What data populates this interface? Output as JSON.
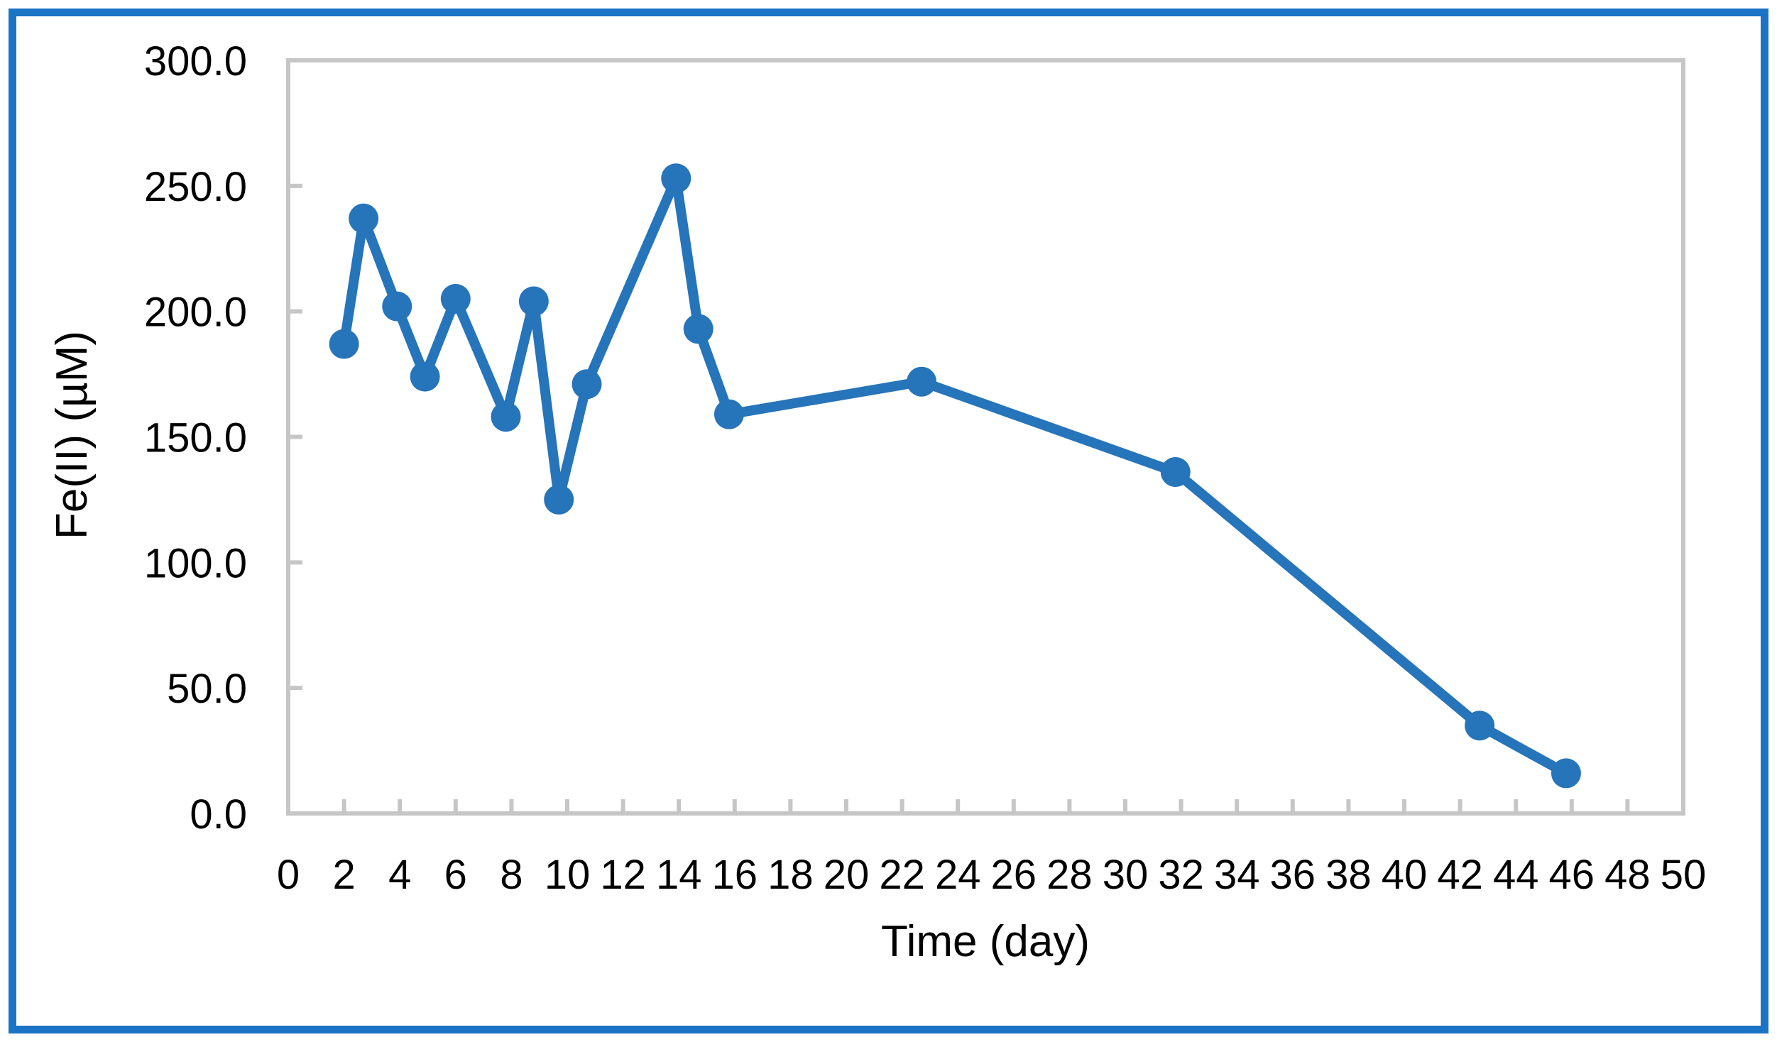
{
  "figure": {
    "background": "#FFFFFF",
    "border_color": "#1B73C6"
  },
  "chart_data": {
    "type": "line",
    "xlabel": "Time (day)",
    "ylabel": "Fe(II) (µM)",
    "xlim": [
      0,
      50
    ],
    "ylim": [
      0,
      300
    ],
    "x_ticks": [
      0,
      2,
      4,
      6,
      8,
      10,
      12,
      14,
      16,
      18,
      20,
      22,
      24,
      26,
      28,
      30,
      32,
      34,
      36,
      38,
      40,
      42,
      44,
      46,
      48,
      50
    ],
    "y_ticks": [
      0,
      50,
      100,
      150,
      200,
      250,
      300
    ],
    "y_tick_labels": [
      "0.0",
      "50.0",
      "100.0",
      "150.0",
      "200.0",
      "250.0",
      "300.0"
    ],
    "grid": false,
    "legend": false,
    "marker": "circle",
    "line_color": "#2674B9",
    "axis_color": "#C6C6C6",
    "tick_label_color": "#000000",
    "series": [
      {
        "x": [
          2.0,
          2.7,
          3.9,
          4.9,
          6.0,
          7.8,
          8.8,
          9.7,
          10.7,
          13.9,
          14.7,
          15.8,
          22.7,
          31.8,
          42.7,
          45.8
        ],
        "y": [
          187,
          237,
          202,
          174,
          205,
          158,
          204,
          125,
          171,
          253,
          193,
          159,
          172,
          136,
          35,
          16
        ]
      }
    ]
  }
}
